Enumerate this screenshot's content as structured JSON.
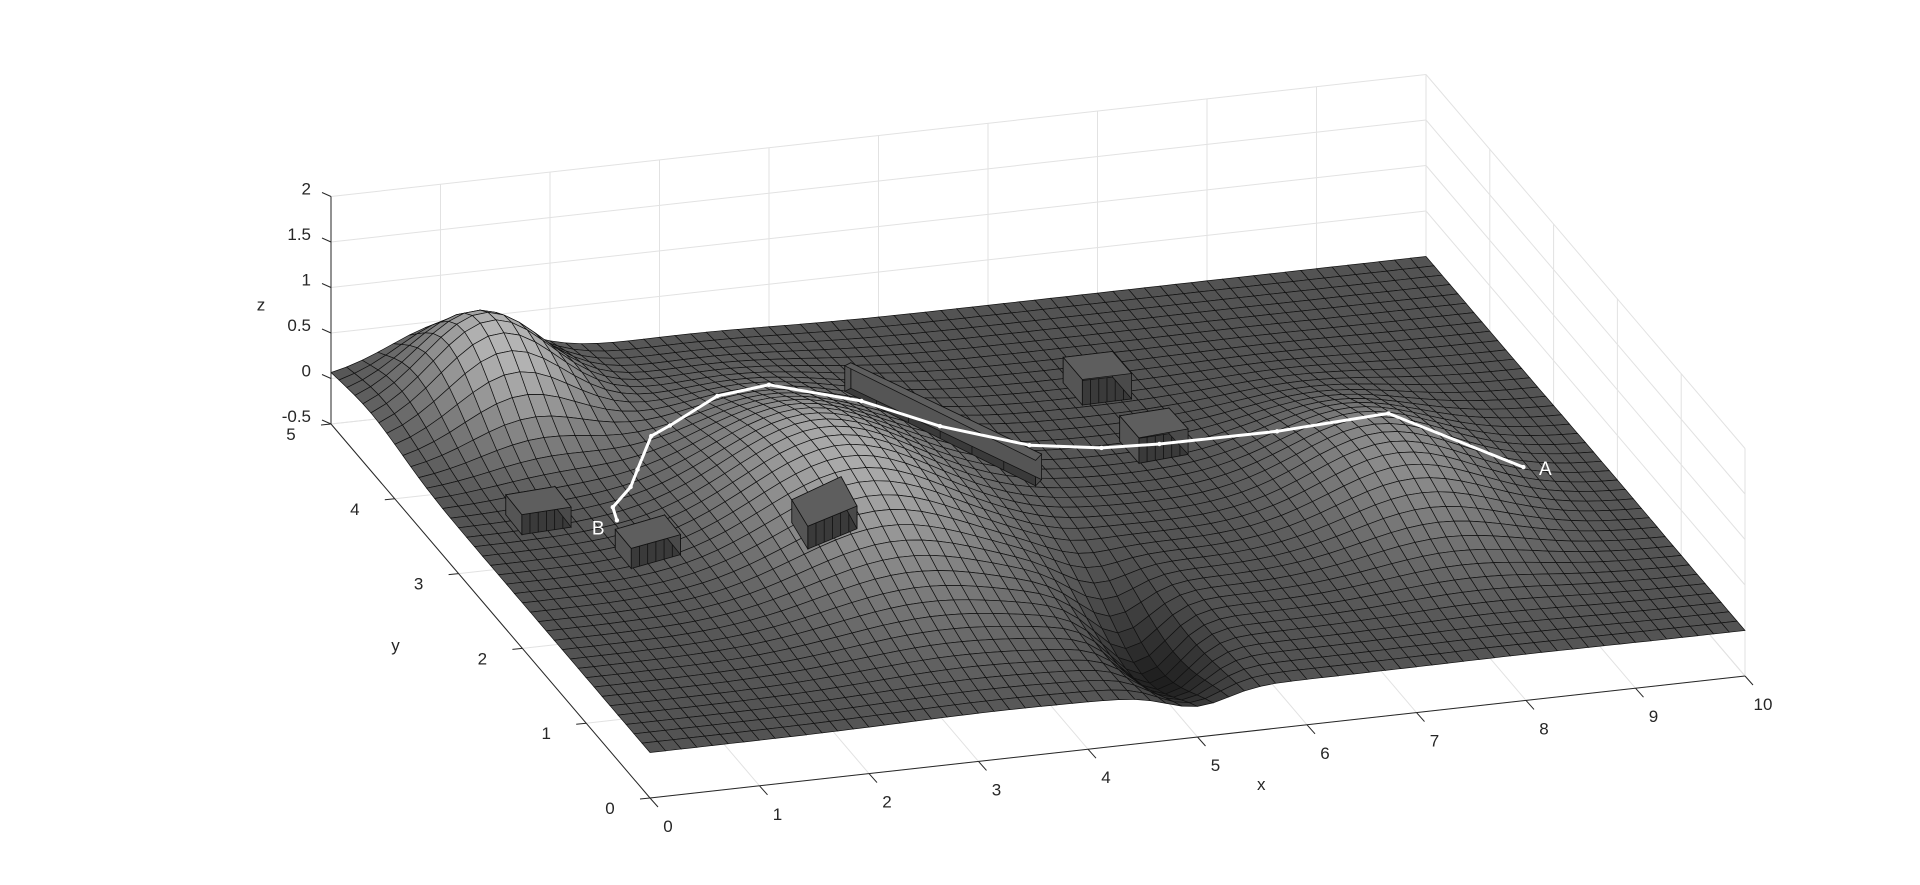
{
  "chart_data": {
    "type": "surface",
    "title": "",
    "xlabel": "x",
    "ylabel": "y",
    "zlabel": "z",
    "xlim": [
      0,
      10
    ],
    "ylim": [
      0,
      5
    ],
    "zlim": [
      -0.5,
      2
    ],
    "x_ticks": [
      0,
      1,
      2,
      3,
      4,
      5,
      6,
      7,
      8,
      9,
      10
    ],
    "y_ticks": [
      0,
      1,
      2,
      3,
      4,
      5
    ],
    "z_ticks": [
      -0.5,
      0,
      0.5,
      1,
      1.5,
      2
    ],
    "x_tick_labels": [
      "0",
      "1",
      "2",
      "3",
      "4",
      "5",
      "6",
      "7",
      "8",
      "9",
      "10"
    ],
    "y_tick_labels": [
      "0",
      "1",
      "2",
      "3",
      "4",
      "5"
    ],
    "z_tick_labels": [
      "-0.5",
      "0",
      "0.5",
      "1",
      "1.5",
      "2"
    ],
    "grid": true,
    "colormap": "gray",
    "surface_peaks": [
      {
        "x": 1.1,
        "y": 4.4,
        "height": 1.0,
        "sx": 0.55,
        "sy": 0.5
      },
      {
        "x": 3.2,
        "y": 2.6,
        "height": 0.9,
        "sx": 0.85,
        "sy": 1.0
      },
      {
        "x": 8.0,
        "y": 2.2,
        "height": 0.6,
        "sx": 0.7,
        "sy": 0.75
      },
      {
        "x": 5.0,
        "y": 0.85,
        "height": -0.55,
        "sx": 0.28,
        "sy": 0.55
      }
    ],
    "obstacles": [
      {
        "x": 2.7,
        "y": 1.9,
        "w": 0.45,
        "d": 0.25,
        "h": 0.25
      },
      {
        "x": 4.6,
        "y": 3.3,
        "w": 1.6,
        "d": 0.14,
        "h": 0.28,
        "angle": -50
      },
      {
        "x": 6.3,
        "y": 3.8,
        "w": 0.45,
        "d": 0.3,
        "h": 0.28
      },
      {
        "x": 6.35,
        "y": 3.0,
        "w": 0.45,
        "d": 0.3,
        "h": 0.28
      },
      {
        "x": 0.7,
        "y": 2.95,
        "w": 0.45,
        "d": 0.25,
        "h": 0.22
      },
      {
        "x": 1.35,
        "y": 2.35,
        "w": 0.45,
        "d": 0.25,
        "h": 0.22
      }
    ],
    "path": {
      "x": [
        9.2,
        8.2,
        7.3,
        6.4,
        5.9,
        5.3,
        4.6,
        4.0,
        3.3,
        2.8,
        2.25,
        2.05,
        1.75,
        1.6,
        1.35,
        1.3
      ],
      "y": [
        2.1,
        2.5,
        2.7,
        3.0,
        3.05,
        3.15,
        3.35,
        3.55,
        3.8,
        3.75,
        3.55,
        3.5,
        3.2,
        3.05,
        2.9,
        2.75
      ]
    },
    "annotations": [
      {
        "text": "A",
        "x": 9.4,
        "y": 2.1
      },
      {
        "text": "B",
        "x": 1.1,
        "y": 2.7
      }
    ]
  }
}
